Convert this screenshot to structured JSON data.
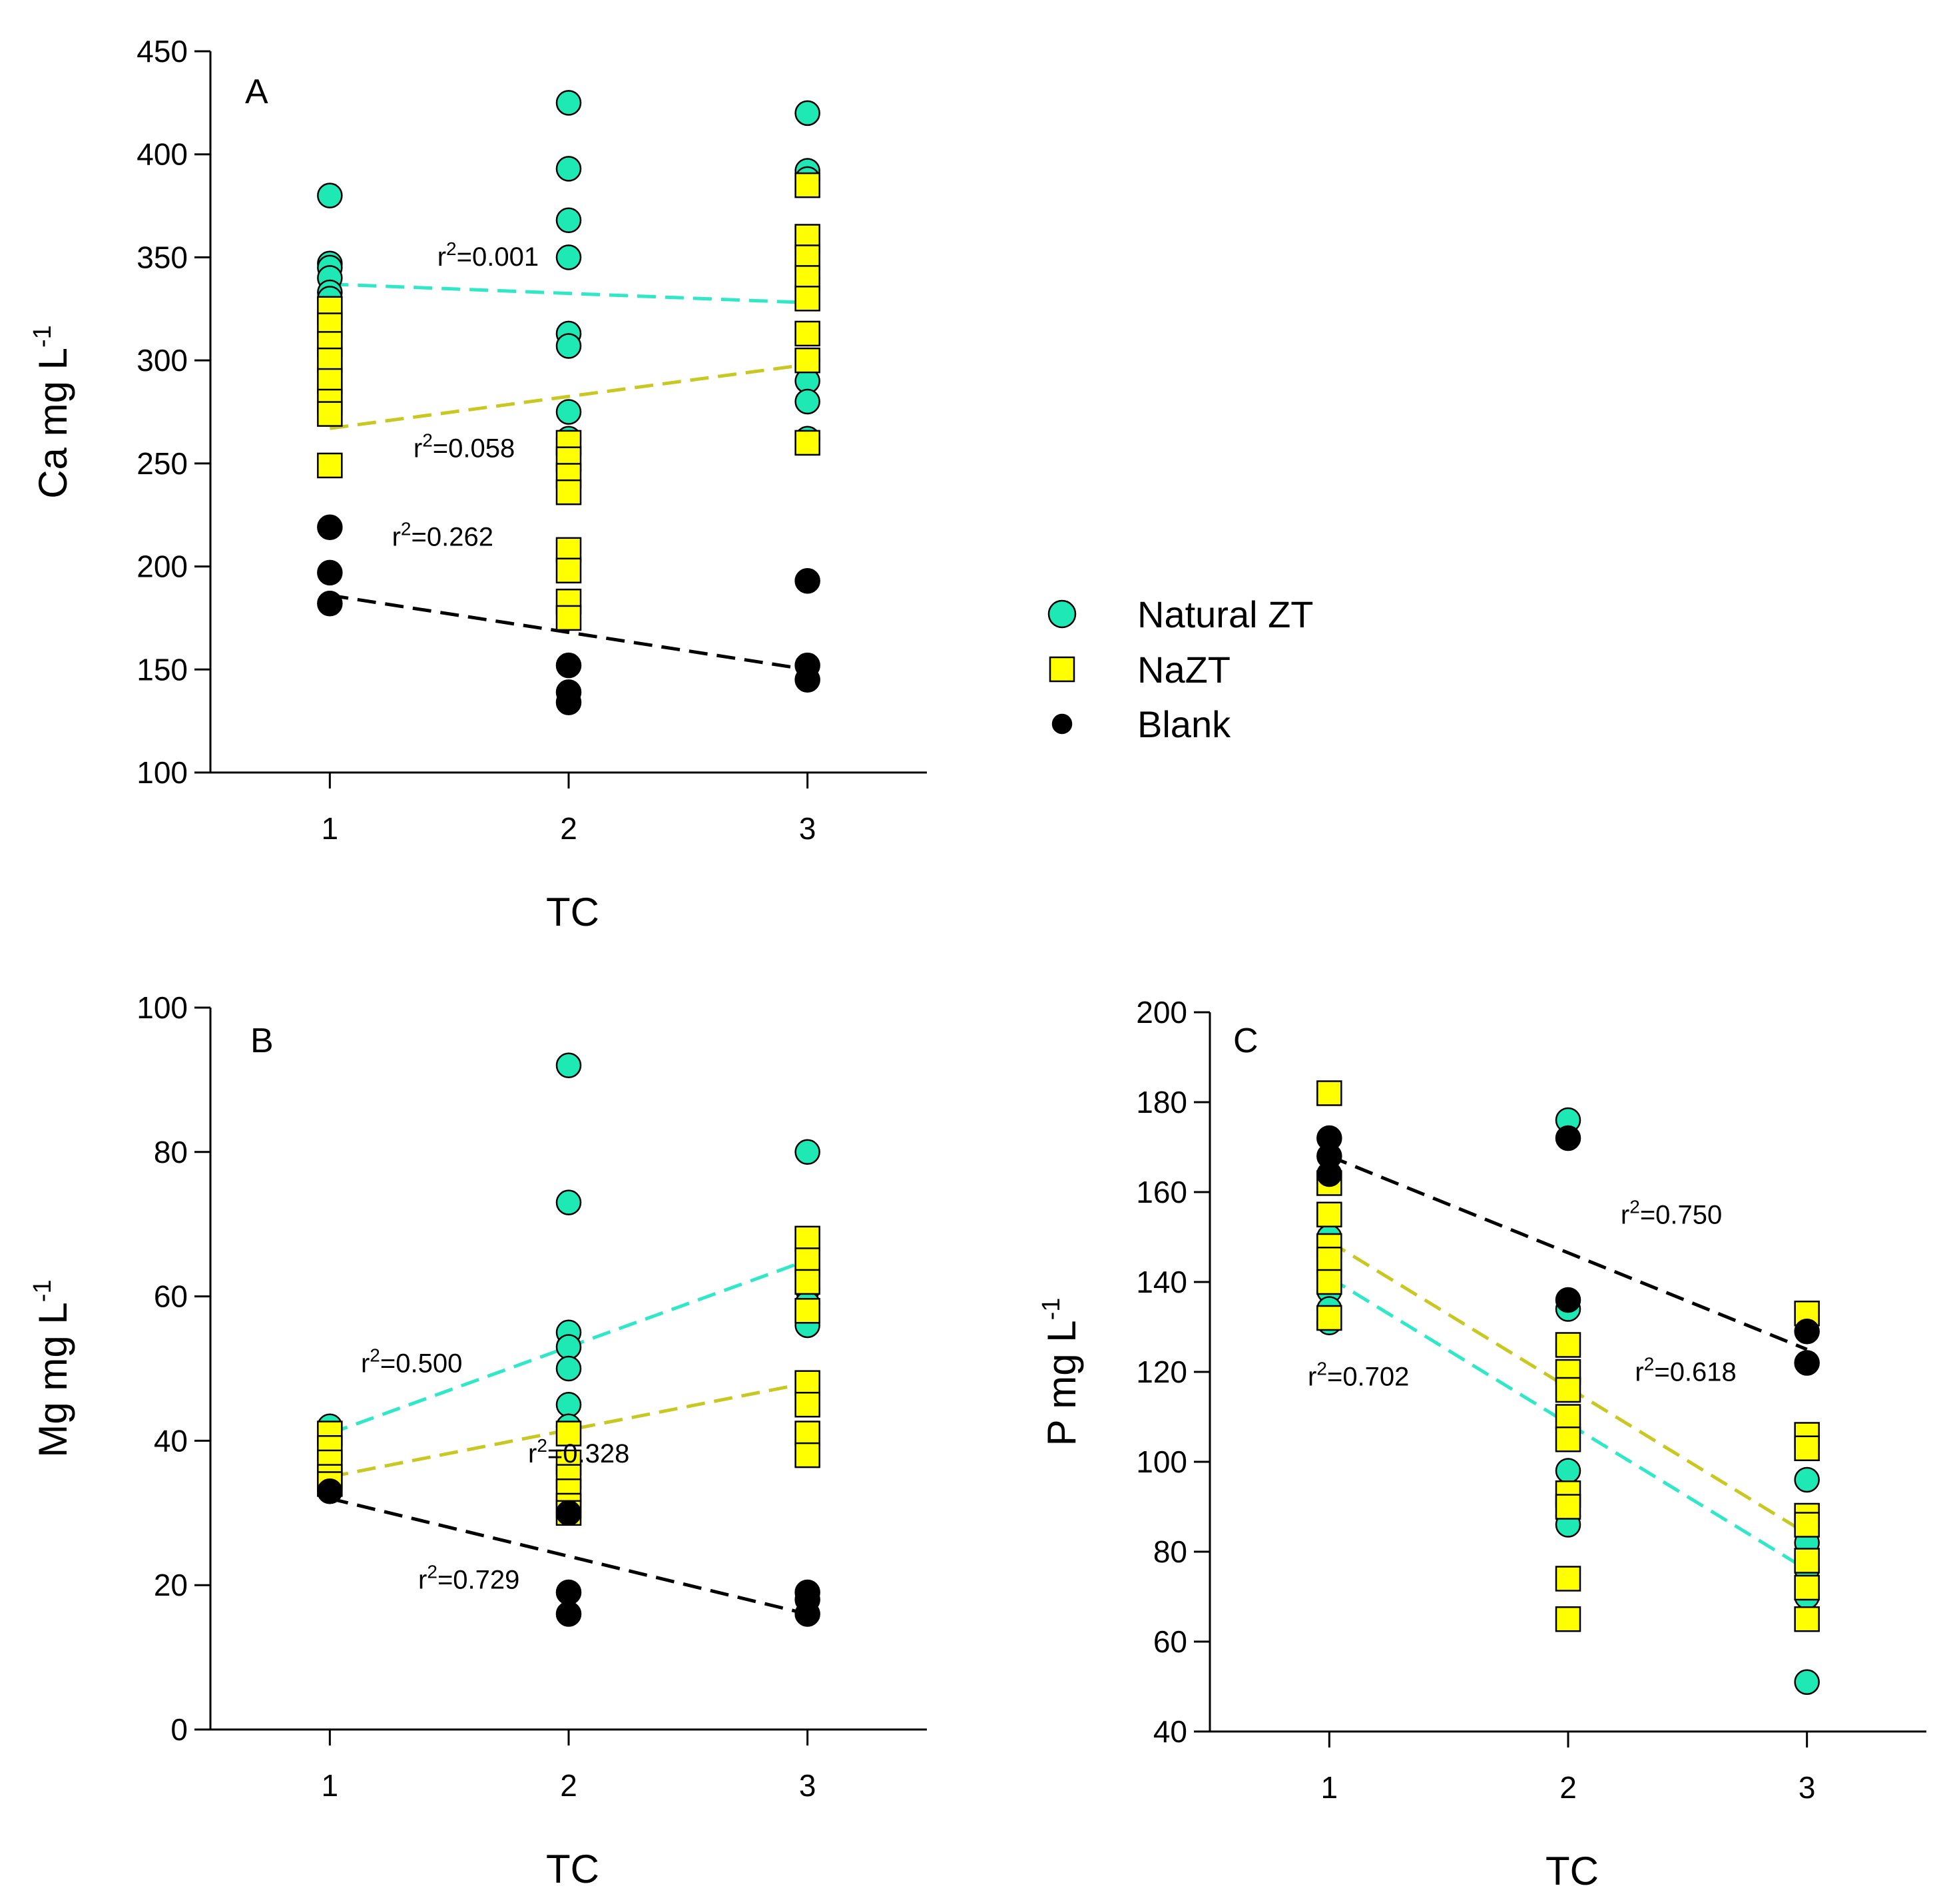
{
  "legend": [
    {
      "label": "Natural ZT",
      "marker": "circle",
      "color": "#1ee8b4"
    },
    {
      "label": "NaZT",
      "marker": "square",
      "color": "#ffff00"
    },
    {
      "label": "Blank",
      "marker": "circle",
      "color": "#000000"
    }
  ],
  "trend_colors": {
    "Natural ZT": "#2ee8c8",
    "NaZT": "#c8c820",
    "Blank": "#000000"
  },
  "chart_data": [
    {
      "panel": "A",
      "type": "scatter",
      "xlabel": "TC",
      "ylabel": "Ca mg L",
      "ylabel_sup": "-1",
      "xticks": [
        1,
        2,
        3
      ],
      "yticks": [
        100,
        150,
        200,
        250,
        300,
        350,
        400,
        450
      ],
      "xlim": [
        0.5,
        3.5
      ],
      "ylim": [
        100,
        450
      ],
      "grid": false,
      "series": [
        {
          "name": "Natural ZT",
          "points": [
            [
              1,
              380
            ],
            [
              1,
              347
            ],
            [
              1,
              345
            ],
            [
              1,
              340
            ],
            [
              1,
              333
            ],
            [
              1,
              330
            ],
            [
              1,
              318
            ],
            [
              2,
              425
            ],
            [
              2,
              393
            ],
            [
              2,
              368
            ],
            [
              2,
              350
            ],
            [
              2,
              313
            ],
            [
              2,
              307
            ],
            [
              2,
              275
            ],
            [
              2,
              262
            ],
            [
              3,
              420
            ],
            [
              3,
              392
            ],
            [
              3,
              388
            ],
            [
              3,
              353
            ],
            [
              3,
              340
            ],
            [
              3,
              300
            ],
            [
              3,
              290
            ],
            [
              3,
              280
            ],
            [
              3,
              262
            ]
          ]
        },
        {
          "name": "NaZT",
          "points": [
            [
              1,
              325
            ],
            [
              1,
              317
            ],
            [
              1,
              308
            ],
            [
              1,
              300
            ],
            [
              1,
              290
            ],
            [
              1,
              280
            ],
            [
              1,
              274
            ],
            [
              1,
              249
            ],
            [
              2,
              260
            ],
            [
              2,
              252
            ],
            [
              2,
              244
            ],
            [
              2,
              236
            ],
            [
              2,
              208
            ],
            [
              2,
              198
            ],
            [
              2,
              183
            ],
            [
              2,
              175
            ],
            [
              3,
              385
            ],
            [
              3,
              360
            ],
            [
              3,
              350
            ],
            [
              3,
              340
            ],
            [
              3,
              330
            ],
            [
              3,
              313
            ],
            [
              3,
              300
            ],
            [
              3,
              260
            ]
          ]
        },
        {
          "name": "Blank",
          "points": [
            [
              1,
              219
            ],
            [
              1,
              197
            ],
            [
              1,
              182
            ],
            [
              2,
              152
            ],
            [
              2,
              139
            ],
            [
              2,
              134
            ],
            [
              3,
              193
            ],
            [
              3,
              152
            ],
            [
              3,
              145
            ]
          ]
        }
      ],
      "trend_lines": [
        {
          "series": "Natural ZT",
          "y_at_1": 337,
          "y_at_3": 328,
          "r2_label": "r",
          "r2_sup": "2",
          "r2_value": "=0.001"
        },
        {
          "series": "NaZT",
          "y_at_1": 267,
          "y_at_3": 298,
          "r2_label": "r",
          "r2_sup": "2",
          "r2_value": "=0.058"
        },
        {
          "series": "Blank",
          "y_at_1": 186,
          "y_at_3": 150,
          "r2_label": "r",
          "r2_sup": "2",
          "r2_value": "=0.262"
        }
      ]
    },
    {
      "panel": "B",
      "type": "scatter",
      "xlabel": "TC",
      "ylabel": "Mg mg L",
      "ylabel_sup": "-1",
      "xticks": [
        1,
        2,
        3
      ],
      "yticks": [
        0,
        20,
        40,
        60,
        80,
        100
      ],
      "xlim": [
        0.5,
        3.5
      ],
      "ylim": [
        0,
        100
      ],
      "grid": false,
      "series": [
        {
          "name": "Natural ZT",
          "points": [
            [
              1,
              42
            ],
            [
              1,
              40
            ],
            [
              1,
              38
            ],
            [
              1,
              36
            ],
            [
              2,
              92
            ],
            [
              2,
              73
            ],
            [
              2,
              55
            ],
            [
              2,
              53
            ],
            [
              2,
              50
            ],
            [
              2,
              45
            ],
            [
              2,
              42
            ],
            [
              3,
              80
            ],
            [
              3,
              63
            ],
            [
              3,
              61
            ],
            [
              3,
              59
            ],
            [
              3,
              56
            ]
          ]
        },
        {
          "name": "NaZT",
          "points": [
            [
              1,
              41
            ],
            [
              1,
              39
            ],
            [
              1,
              37
            ],
            [
              1,
              35
            ],
            [
              1,
              34
            ],
            [
              2,
              41
            ],
            [
              2,
              37
            ],
            [
              2,
              35
            ],
            [
              2,
              33
            ],
            [
              2,
              31
            ],
            [
              2,
              30
            ],
            [
              3,
              68
            ],
            [
              3,
              65
            ],
            [
              3,
              62
            ],
            [
              3,
              58
            ],
            [
              3,
              48
            ],
            [
              3,
              45
            ],
            [
              3,
              41
            ],
            [
              3,
              38
            ]
          ]
        },
        {
          "name": "Blank",
          "points": [
            [
              1,
              33
            ],
            [
              2,
              30
            ],
            [
              2,
              19
            ],
            [
              2,
              16
            ],
            [
              3,
              19
            ],
            [
              3,
              18
            ],
            [
              3,
              16
            ]
          ]
        }
      ],
      "trend_lines": [
        {
          "series": "Natural ZT",
          "y_at_1": 41,
          "y_at_3": 65,
          "r2_label": "r",
          "r2_sup": "2",
          "r2_value": "=0.500"
        },
        {
          "series": "NaZT",
          "y_at_1": 35,
          "y_at_3": 48,
          "r2_label": "r",
          "r2_sup": "2",
          "r2_value": "=0.328"
        },
        {
          "series": "Blank",
          "y_at_1": 32,
          "y_at_3": 16,
          "r2_label": "r",
          "r2_sup": "2",
          "r2_value": "=0.729"
        }
      ]
    },
    {
      "panel": "C",
      "type": "scatter",
      "xlabel": "TC",
      "ylabel": "P mg L",
      "ylabel_sup": "-1",
      "xticks": [
        1,
        2,
        3
      ],
      "yticks": [
        40,
        60,
        80,
        100,
        120,
        140,
        160,
        180,
        200
      ],
      "xlim": [
        0.5,
        3.5
      ],
      "ylim": [
        40,
        200
      ],
      "grid": false,
      "series": [
        {
          "name": "Natural ZT",
          "points": [
            [
              1,
              150
            ],
            [
              1,
              146
            ],
            [
              1,
              142
            ],
            [
              1,
              138
            ],
            [
              1,
              134
            ],
            [
              1,
              131
            ],
            [
              2,
              176
            ],
            [
              2,
              134
            ],
            [
              2,
              98
            ],
            [
              2,
              90
            ],
            [
              2,
              88
            ],
            [
              2,
              86
            ],
            [
              3,
              96
            ],
            [
              3,
              82
            ],
            [
              3,
              76
            ],
            [
              3,
              70
            ],
            [
              3,
              51
            ]
          ]
        },
        {
          "name": "NaZT",
          "points": [
            [
              1,
              182
            ],
            [
              1,
              162
            ],
            [
              1,
              155
            ],
            [
              1,
              148
            ],
            [
              1,
              145
            ],
            [
              1,
              140
            ],
            [
              1,
              132
            ],
            [
              2,
              126
            ],
            [
              2,
              120
            ],
            [
              2,
              116
            ],
            [
              2,
              110
            ],
            [
              2,
              105
            ],
            [
              2,
              93
            ],
            [
              2,
              90
            ],
            [
              2,
              74
            ],
            [
              2,
              65
            ],
            [
              3,
              133
            ],
            [
              3,
              106
            ],
            [
              3,
              103
            ],
            [
              3,
              88
            ],
            [
              3,
              86
            ],
            [
              3,
              78
            ],
            [
              3,
              72
            ],
            [
              3,
              65
            ]
          ]
        },
        {
          "name": "Blank",
          "points": [
            [
              1,
              172
            ],
            [
              1,
              168
            ],
            [
              1,
              164
            ],
            [
              2,
              172
            ],
            [
              2,
              136
            ],
            [
              3,
              129
            ],
            [
              3,
              122
            ]
          ]
        }
      ],
      "trend_lines": [
        {
          "series": "Natural ZT",
          "y_at_1": 141,
          "y_at_3": 76,
          "r2_label": "r",
          "r2_sup": "2",
          "r2_value": "=0.702"
        },
        {
          "series": "NaZT",
          "y_at_1": 149,
          "y_at_3": 84,
          "r2_label": "r",
          "r2_sup": "2",
          "r2_value": "=0.618"
        },
        {
          "series": "Blank",
          "y_at_1": 168,
          "y_at_3": 125,
          "r2_label": "r",
          "r2_sup": "2",
          "r2_value": "=0.750"
        }
      ]
    }
  ]
}
